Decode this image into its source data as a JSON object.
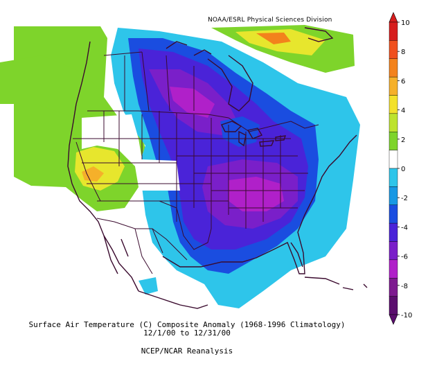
{
  "header": {
    "credit": "NOAA/ESRL Physical Sciences Division"
  },
  "caption": {
    "line1": "Surface Air Temperature (C) Composite Anomaly (1968-1996 Climatology)",
    "line2": "12/1/00  to 12/31/00",
    "line3": "NCEP/NCAR Reanalysis"
  },
  "legend": {
    "ticks": [
      "10",
      "8",
      "6",
      "4",
      "2",
      "0",
      "-2",
      "-4",
      "-6",
      "-8",
      "-10"
    ],
    "colors": [
      "#d61d1d",
      "#f0501e",
      "#f3821c",
      "#f5b02a",
      "#f3e12a",
      "#bde32d",
      "#7ed42b",
      "#ffffff",
      "#2ec5ea",
      "#1798e4",
      "#1a4de0",
      "#4a23d8",
      "#7a1fc9",
      "#b020c9",
      "#7d1a8f",
      "#5b0e6e"
    ]
  },
  "map": {
    "region": "North America",
    "colors": {
      "land_outline": "#3a0a2e",
      "warm": "#7ed42b",
      "yellow": "#e7e62d",
      "cyan": "#2ec5ea",
      "blue": "#1a4de0",
      "violet": "#4a23d8",
      "purple": "#7a1fc9",
      "magenta": "#b020c9"
    }
  }
}
